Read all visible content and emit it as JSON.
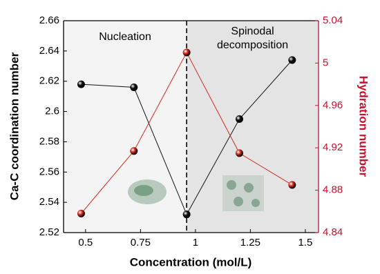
{
  "chart_data": {
    "type": "line",
    "x_label": "Concentration (mol/L)",
    "y_label": "Ca-C coordination number",
    "y2_label": "Hydration number",
    "left_region_label": "Nucleation",
    "right_region_label": [
      "Spinodal",
      "decomposition"
    ],
    "divider_x": 0.96,
    "x": [
      0.48,
      0.72,
      0.96,
      1.2,
      1.44
    ],
    "series": [
      {
        "name": "Ca-C coordination number",
        "color": "#111111",
        "axis": "y",
        "values": [
          2.618,
          2.616,
          2.532,
          2.595,
          2.634
        ]
      },
      {
        "name": "Hydration number",
        "color": "#d42a1e",
        "axis": "y2",
        "values": [
          4.858,
          4.917,
          5.01,
          4.915,
          4.885
        ]
      }
    ],
    "xlim": [
      0.4,
      1.56
    ],
    "xticks": [
      0.5,
      0.75,
      1,
      1.25,
      1.5
    ],
    "ylim": [
      2.52,
      2.66
    ],
    "yticks": [
      2.52,
      2.54,
      2.56,
      2.58,
      2.6,
      2.62,
      2.64,
      2.66
    ],
    "y2lim": [
      4.84,
      5.04
    ],
    "y2ticks": [
      4.84,
      4.88,
      4.92,
      4.96,
      5,
      5.04
    ],
    "y2_color": "#c8102e",
    "left_region_color": "#f4f4f4",
    "right_region_color": "#e4e4e4"
  }
}
